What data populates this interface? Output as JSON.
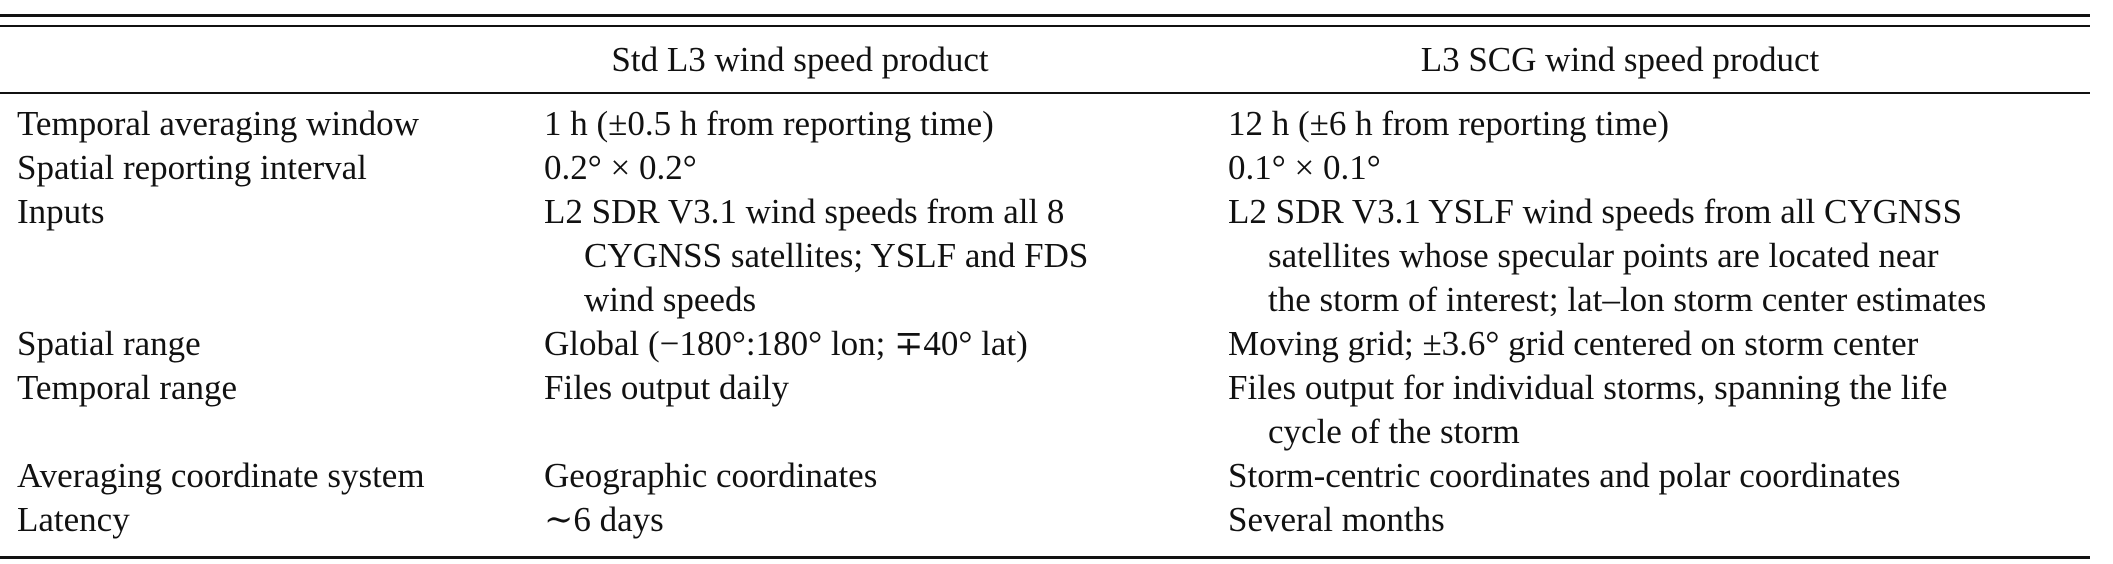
{
  "columns": {
    "std": "Std L3 wind speed product",
    "scg": "L3 SCG wind speed product"
  },
  "rows": [
    {
      "label": "Temporal averaging window",
      "std": [
        "1 h (±0.5 h from reporting time)"
      ],
      "scg": [
        "12 h (±6 h from reporting time)"
      ]
    },
    {
      "label": "Spatial reporting interval",
      "std": [
        "0.2° × 0.2°"
      ],
      "scg": [
        "0.1° × 0.1°"
      ]
    },
    {
      "label": "Inputs",
      "std": [
        "L2 SDR V3.1 wind speeds from all 8",
        "CYGNSS satellites; YSLF and FDS",
        "wind speeds"
      ],
      "scg": [
        "L2 SDR V3.1 YSLF wind speeds from all CYGNSS",
        "satellites whose specular points are located near",
        "the storm of interest; lat–lon storm center estimates"
      ]
    },
    {
      "label": "Spatial range",
      "std": [
        "Global (−180°:180° lon; ∓40° lat)"
      ],
      "scg": [
        "Moving grid; ±3.6° grid centered on storm center"
      ]
    },
    {
      "label": "Temporal range",
      "std": [
        "Files output daily"
      ],
      "scg": [
        "Files output for individual storms, spanning the life",
        "cycle of the storm"
      ]
    },
    {
      "label": "Averaging coordinate system",
      "std": [
        "Geographic coordinates"
      ],
      "scg": [
        "Storm-centric coordinates and polar coordinates"
      ]
    },
    {
      "label": "Latency",
      "std": [
        "∼6 days"
      ],
      "scg": [
        "Several months"
      ]
    }
  ]
}
